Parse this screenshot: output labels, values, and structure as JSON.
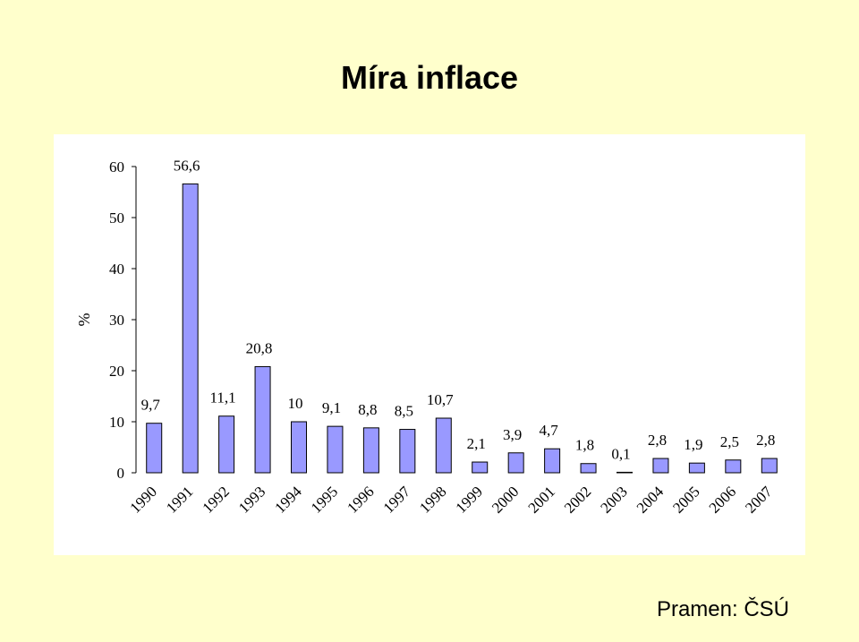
{
  "title": "Míra inflace",
  "source": "Pramen: ČSÚ",
  "colors": {
    "background": "#ffffcc",
    "panel": "#ffffff",
    "bar": "#9999ff",
    "bar_stroke": "#000000"
  },
  "chart_data": {
    "type": "bar",
    "title": "Míra inflace",
    "ylabel": "%",
    "xlabel": "",
    "ylim": [
      0,
      60
    ],
    "yticks": [
      0,
      10,
      20,
      30,
      40,
      50,
      60
    ],
    "grid": false,
    "categories": [
      "1990",
      "1991",
      "1992",
      "1993",
      "1994",
      "1995",
      "1996",
      "1997",
      "1998",
      "1999",
      "2000",
      "2001",
      "2002",
      "2003",
      "2004",
      "2005",
      "2006",
      "2007"
    ],
    "values": [
      9.7,
      56.6,
      11.1,
      20.8,
      10,
      9.1,
      8.8,
      8.5,
      10.7,
      2.1,
      3.9,
      4.7,
      1.8,
      0.1,
      2.8,
      1.9,
      2.5,
      2.8
    ],
    "value_labels": [
      "9,7",
      "56,6",
      "11,1",
      "20,8",
      "10",
      "9,1",
      "8,8",
      "8,5",
      "10,7",
      "2,1",
      "3,9",
      "4,7",
      "1,8",
      "0,1",
      "2,8",
      "1,9",
      "2,5",
      "2,8"
    ]
  }
}
